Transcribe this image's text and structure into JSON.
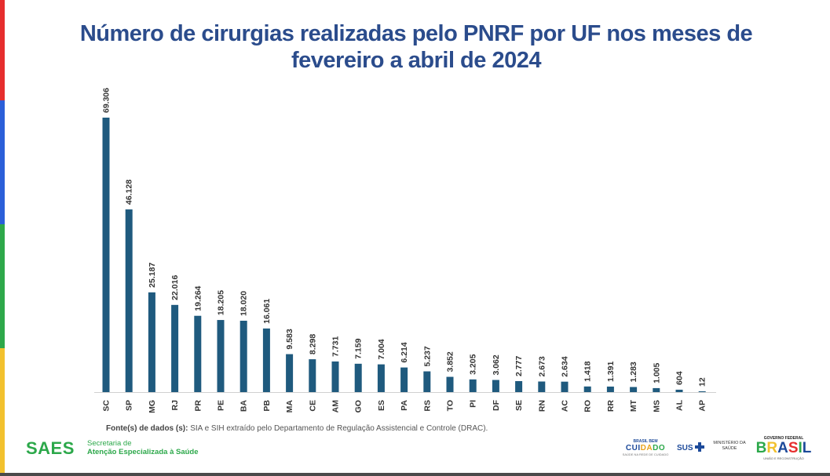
{
  "chart_data": {
    "type": "bar",
    "title": "Número de cirurgias realizadas pelo PNRF por UF nos meses de fevereiro a abril de 2024",
    "categories": [
      "SC",
      "SP",
      "MG",
      "RJ",
      "PR",
      "PE",
      "BA",
      "PB",
      "MA",
      "CE",
      "AM",
      "GO",
      "ES",
      "PA",
      "RS",
      "TO",
      "PI",
      "DF",
      "SE",
      "RN",
      "AC",
      "RO",
      "RR",
      "MT",
      "MS",
      "AL",
      "AP"
    ],
    "values": [
      69306,
      46128,
      25187,
      22016,
      19264,
      18205,
      18020,
      16061,
      9583,
      8298,
      7731,
      7159,
      7004,
      6214,
      5237,
      3852,
      3205,
      3062,
      2777,
      2673,
      2634,
      1418,
      1391,
      1283,
      1005,
      604,
      12
    ],
    "labels": [
      "69.306",
      "46.128",
      "25.187",
      "22.016",
      "19.264",
      "18.205",
      "18.020",
      "16.061",
      "9.583",
      "8.298",
      "7.731",
      "7.159",
      "7.004",
      "6.214",
      "5.237",
      "3.852",
      "3.205",
      "3.062",
      "2.777",
      "2.673",
      "2.634",
      "1.418",
      "1.391",
      "1.283",
      "1.005",
      "604",
      "12"
    ],
    "xlabel": "",
    "ylabel": "",
    "ylim": [
      0,
      69306
    ],
    "grid": false,
    "legend": "none",
    "bar_color": "#1f5a7e"
  },
  "title_lines": [
    "Número de cirurgias realizadas pelo PNRF por UF nos meses de",
    "fevereiro a abril de 2024"
  ],
  "source": {
    "label": "Fonte(s) de dados (s):",
    "text": " SIA e SIH extraído pelo Departamento de Regulação Assistencial e Controle (DRAC)."
  },
  "footer": {
    "saes": "SAES",
    "saes_line1": "Secretaria de",
    "saes_line2": "Atenção Especializada à Saúde",
    "brasil_bem_top": "BRASIL BEM",
    "brasil_bem_main": "CUIDADO",
    "brasil_bem_sub": "SAÚDE NA REDE DE CUIDADO",
    "sus": "SUS",
    "ministerio_1": "MINISTÉRIO DA",
    "ministerio_2": "SAÚDE",
    "gov_top": "GOVERNO FEDERAL",
    "gov_main": "BRASIL",
    "gov_sub": "UNIÃO E RECONSTRUÇÃO"
  },
  "colors": {
    "title": "#2b4c8c",
    "saes_green": "#2ca84a",
    "stripe_red": "#e62e2e",
    "stripe_blue": "#2b5fd9",
    "stripe_green": "#2ea84a",
    "stripe_yellow": "#f2c12e"
  }
}
